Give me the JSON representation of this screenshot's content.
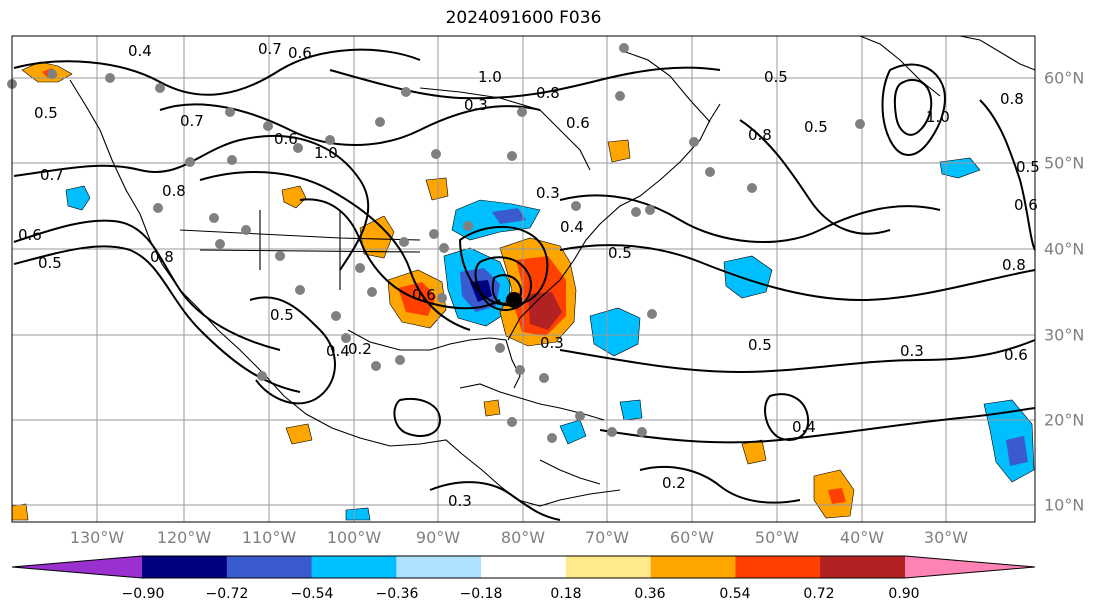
{
  "title": "2024091600 F036",
  "longitude_labels": [
    "130°W",
    "120°W",
    "110°W",
    "100°W",
    "90°W",
    "80°W",
    "70°W",
    "60°W",
    "50°W",
    "40°W",
    "30°W"
  ],
  "latitude_labels": [
    "60°N",
    "50°N",
    "40°N",
    "30°N",
    "20°N",
    "10°N"
  ],
  "colorbar": {
    "tick_labels": [
      "−0.90",
      "−0.72",
      "−0.54",
      "−0.36",
      "−0.18",
      "0.18",
      "0.36",
      "0.54",
      "0.72",
      "0.90"
    ],
    "colors": [
      "#9b30d0",
      "#000080",
      "#3a5bd0",
      "#00bfff",
      "#b0e2ff",
      "#ffffff",
      "#ffe98a",
      "#ffa500",
      "#ff4000",
      "#b22222",
      "#ff82b4"
    ]
  },
  "contour_labels": [
    "0.4",
    "0.7",
    "0.6",
    "1.0",
    "0.3",
    "0.8",
    "0.6",
    "0.5",
    "0.7",
    "0.6",
    "0.7",
    "1.0",
    "0.8",
    "0.3",
    "0.4",
    "0.5",
    "0.5",
    "0.6",
    "0.8",
    "0.3",
    "0.6",
    "0.5",
    "0.4",
    "0.2",
    "1.0",
    "0.8",
    "0.6",
    "0.5",
    "0.3",
    "0.4",
    "0.5",
    "0.2",
    "0.3",
    "0.8",
    "0.6",
    "0.8",
    "0.5",
    "0.5"
  ],
  "storm_marker": "black-dot-low-center",
  "colors": {
    "grid": "#999999",
    "axis_label": "#808080",
    "contour": "#000000",
    "station": "#808080"
  }
}
